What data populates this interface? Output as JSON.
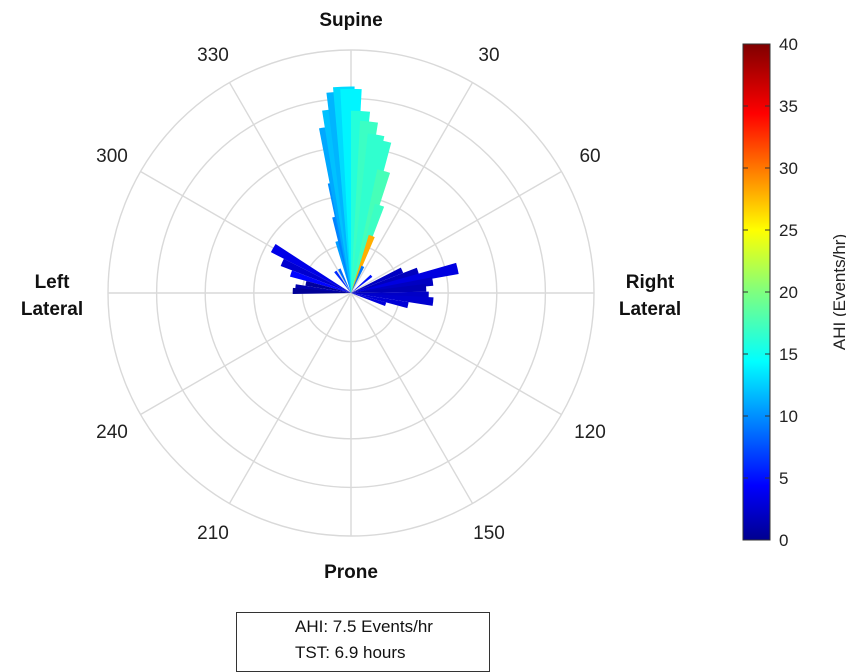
{
  "chart_data": {
    "type": "polar-bar",
    "angle_ticks": [
      "30",
      "60",
      "120",
      "150",
      "210",
      "240",
      "300",
      "330"
    ],
    "direction_labels": {
      "top": "Supine",
      "bottom": "Prone",
      "left": [
        "Left",
        "Lateral"
      ],
      "right": [
        "Right",
        "Lateral"
      ]
    },
    "radial_rings": 5,
    "angle_spokes_deg": 30,
    "grid": true,
    "colorbar": {
      "label": "AHI (Events/hr)",
      "min": 0,
      "max": 40,
      "ticks": [
        "0",
        "5",
        "10",
        "15",
        "20",
        "25",
        "30",
        "35",
        "40"
      ],
      "colormap": "jet"
    },
    "bars": [
      {
        "angle": -60,
        "r": 1.85,
        "ahi": 3.5
      },
      {
        "angle": -66,
        "r": 1.55,
        "ahi": 2.5
      },
      {
        "angle": -72,
        "r": 1.3,
        "ahi": 4.5
      },
      {
        "angle": -78,
        "r": 0.95,
        "ahi": 0.5
      },
      {
        "angle": -84,
        "r": 1.15,
        "ahi": 1.2
      },
      {
        "angle": -88,
        "r": 1.2,
        "ahi": 0.3
      },
      {
        "angle": -36,
        "r": 0.55,
        "ahi": 6.0
      },
      {
        "angle": -26,
        "r": 0.55,
        "ahi": 8.5
      },
      {
        "angle": -14,
        "r": 1.1,
        "ahi": 10.5
      },
      {
        "angle": -11,
        "r": 1.6,
        "ahi": 9.5
      },
      {
        "angle": -9,
        "r": 2.3,
        "ahi": 10.0
      },
      {
        "angle": -8,
        "r": 3.45,
        "ahi": 11.0
      },
      {
        "angle": -6,
        "r": 3.8,
        "ahi": 12.0
      },
      {
        "angle": -4,
        "r": 4.15,
        "ahi": 11.5
      },
      {
        "angle": -2,
        "r": 4.25,
        "ahi": 13.0
      },
      {
        "angle": 0,
        "r": 4.2,
        "ahi": 14.0
      },
      {
        "angle": 3,
        "r": 3.75,
        "ahi": 16.0
      },
      {
        "angle": 6,
        "r": 3.55,
        "ahi": 17.0
      },
      {
        "angle": 9,
        "r": 3.3,
        "ahi": 16.5
      },
      {
        "angle": 12,
        "r": 3.2,
        "ahi": 16.5
      },
      {
        "angle": 15,
        "r": 2.6,
        "ahi": 17.5
      },
      {
        "angle": 18,
        "r": 1.9,
        "ahi": 17.0
      },
      {
        "angle": 20,
        "r": 1.25,
        "ahi": 28.0
      },
      {
        "angle": 24,
        "r": 0.6,
        "ahi": 9.0
      },
      {
        "angle": 50,
        "r": 0.55,
        "ahi": 5.0
      },
      {
        "angle": 66,
        "r": 1.15,
        "ahi": 2.0
      },
      {
        "angle": 72,
        "r": 1.45,
        "ahi": 1.8
      },
      {
        "angle": 77,
        "r": 2.25,
        "ahi": 3.2
      },
      {
        "angle": 82,
        "r": 1.7,
        "ahi": 2.0
      },
      {
        "angle": 86,
        "r": 1.55,
        "ahi": 1.5
      },
      {
        "angle": 92,
        "r": 1.6,
        "ahi": 2.2
      },
      {
        "angle": 96,
        "r": 1.7,
        "ahi": 2.5
      },
      {
        "angle": 102,
        "r": 1.2,
        "ahi": 2.8
      },
      {
        "angle": 108,
        "r": 0.75,
        "ahi": 3.0
      }
    ]
  },
  "stats": {
    "ahi": "AHI: 7.5 Events/hr",
    "tst": "TST: 6.9 hours"
  }
}
